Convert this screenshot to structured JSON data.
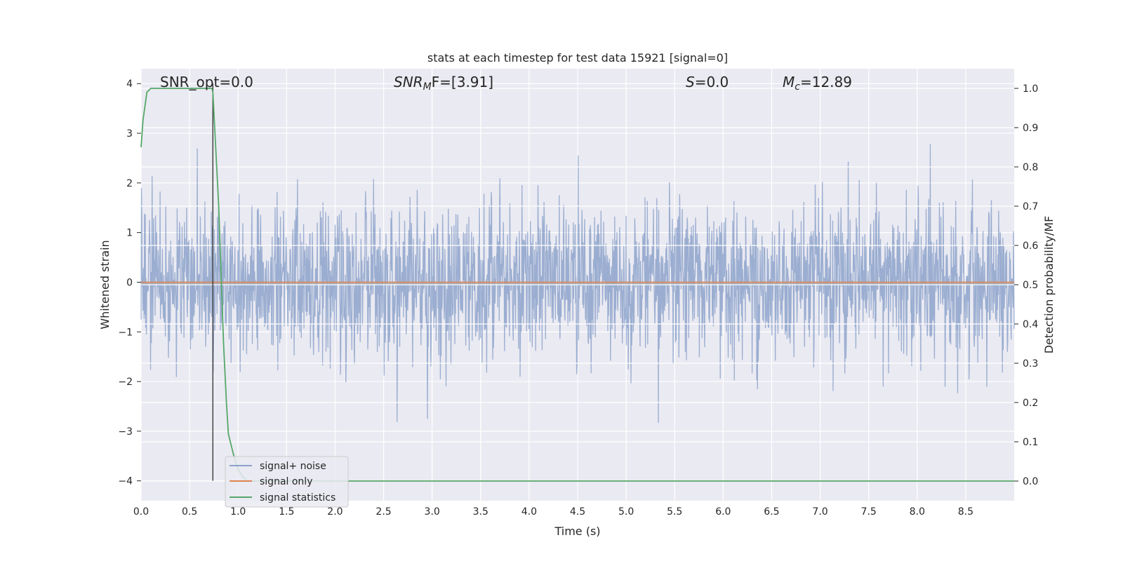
{
  "chart_data": {
    "type": "line",
    "title": "stats at each timestep for test data 15921 [signal=0]",
    "xlabel": "Time (s)",
    "ylabel": "Whitened strain",
    "y2label": "Detection probability/MF",
    "xlim": [
      0,
      9
    ],
    "ylim": [
      -4.4,
      4.3
    ],
    "y2lim": [
      -0.05,
      1.05
    ],
    "x_ticks": [
      "0.0",
      "0.5",
      "1.0",
      "1.5",
      "2.0",
      "2.5",
      "3.0",
      "3.5",
      "4.0",
      "4.5",
      "5.0",
      "5.5",
      "6.0",
      "6.5",
      "7.0",
      "7.5",
      "8.0",
      "8.5"
    ],
    "y_ticks": [
      "4",
      "3",
      "2",
      "1",
      "0",
      "−1",
      "−2",
      "−3",
      "−4"
    ],
    "y2_ticks": [
      "1.0",
      "0.9",
      "0.8",
      "0.7",
      "0.6",
      "0.5",
      "0.4",
      "0.3",
      "0.2",
      "0.1",
      "0.0"
    ],
    "grid": true,
    "legend_position": "lower-left",
    "annotations": {
      "snr_opt": "SNR_opt=0.0",
      "snr_mf": "SNR",
      "snr_mf_sub": "M",
      "snr_mf_rest": "F=[3.91]",
      "s_stat": "S",
      "s_stat_rest": "=0.0",
      "mc": "M",
      "mc_sub": "c",
      "mc_rest": "=12.89"
    },
    "vline_x": 0.74,
    "series": [
      {
        "name": "signal+ noise",
        "color": "#4c72b0",
        "kind": "noise",
        "amplitude_std": 0.8,
        "seed": 15921
      },
      {
        "name": "signal only",
        "color": "#dd8452",
        "kind": "constant",
        "value": 0
      },
      {
        "name": "signal statistics",
        "color": "#55a868",
        "axis": "right",
        "x": [
          0.0,
          0.02,
          0.06,
          0.1,
          0.2,
          0.4,
          0.6,
          0.73,
          0.74,
          0.8,
          0.85,
          0.88,
          0.9,
          0.95,
          1.0,
          1.05,
          1.1,
          9.0
        ],
        "values": [
          0.85,
          0.92,
          0.99,
          1.0,
          1.0,
          1.0,
          1.0,
          1.0,
          0.99,
          0.7,
          0.35,
          0.2,
          0.12,
          0.07,
          0.03,
          0.01,
          0.0,
          0.0
        ]
      }
    ]
  }
}
